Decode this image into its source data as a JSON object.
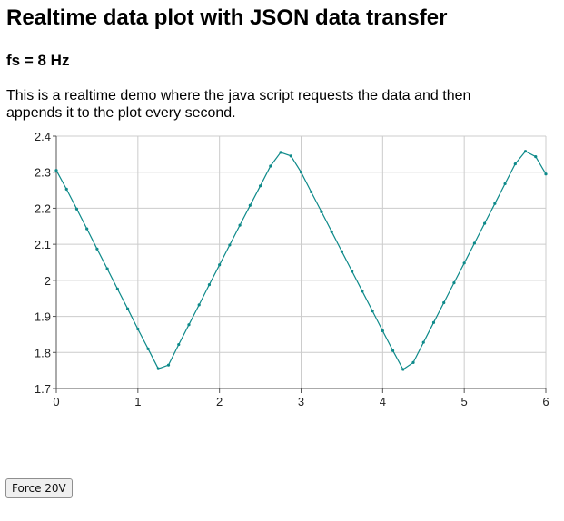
{
  "page": {
    "title": "Realtime data plot with JSON data transfer",
    "subtitle": "fs = 8 Hz",
    "description": "This is a realtime demo where the java script requests the data and then appends it to the plot every second."
  },
  "controls": {
    "force_button_label": "Force 20V"
  },
  "chart_data": {
    "type": "line",
    "title": "",
    "xlabel": "",
    "ylabel": "",
    "xlim": [
      0,
      6
    ],
    "ylim": [
      1.7,
      2.4
    ],
    "xticks": [
      "0",
      "1",
      "2",
      "3",
      "4",
      "5",
      "6"
    ],
    "yticks": [
      "1.7",
      "1.8",
      "1.9",
      "2",
      "2.1",
      "2.2",
      "2.3",
      "2.4"
    ],
    "grid": true,
    "colors": {
      "line": "#0e8a8a",
      "grid": "#cccccc",
      "axis": "#555555"
    },
    "series": [
      {
        "x": [
          0,
          0.125,
          0.25,
          0.375,
          0.5,
          0.625,
          0.75,
          0.875,
          1,
          1.125,
          1.25,
          1.375,
          1.5,
          1.625,
          1.75,
          1.875,
          2,
          2.125,
          2.25,
          2.375,
          2.5,
          2.625,
          2.75,
          2.875,
          3,
          3.125,
          3.25,
          3.375,
          3.5,
          3.625,
          3.75,
          3.875,
          4,
          4.125,
          4.25,
          4.375,
          4.5,
          4.625,
          4.75,
          4.875,
          5,
          5.125,
          5.25,
          5.375,
          5.5,
          5.625,
          5.75,
          5.875,
          6
        ],
        "y": [
          2.305,
          2.253,
          2.198,
          2.143,
          2.087,
          2.032,
          1.976,
          1.921,
          1.865,
          1.81,
          1.755,
          1.765,
          1.822,
          1.877,
          1.932,
          1.988,
          2.043,
          2.098,
          2.153,
          2.208,
          2.262,
          2.317,
          2.355,
          2.345,
          2.3,
          2.245,
          2.19,
          2.135,
          2.08,
          2.025,
          1.97,
          1.915,
          1.86,
          1.805,
          1.753,
          1.772,
          1.828,
          1.883,
          1.938,
          1.993,
          2.048,
          2.103,
          2.158,
          2.213,
          2.268,
          2.323,
          2.358,
          2.343,
          2.295
        ]
      }
    ]
  }
}
